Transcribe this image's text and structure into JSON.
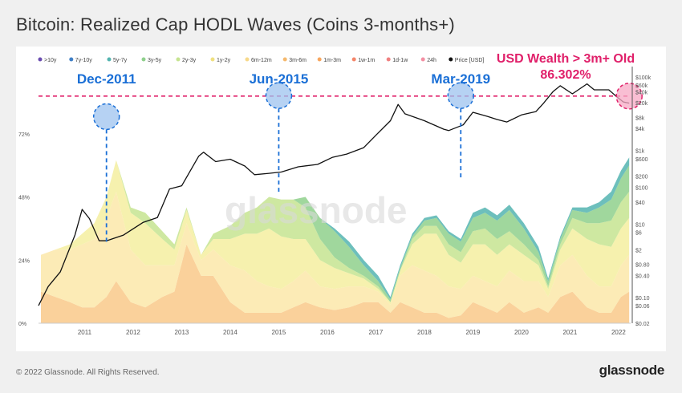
{
  "page": {
    "title": "Bitcoin: Realized Cap HODL Waves (Coins 3-months+)",
    "copyright": "© 2022 Glassnode. All Rights Reserved.",
    "brand": "glassnode",
    "watermark": "glassnode"
  },
  "chart_data": {
    "type": "area",
    "title": "Bitcoin: Realized Cap HODL Waves (Coins 3-months+)",
    "x": [
      2010.6,
      2010.9,
      2011.2,
      2011.45,
      2011.7,
      2011.95,
      2012.15,
      2012.45,
      2012.75,
      2013.1,
      2013.35,
      2013.6,
      2013.9,
      2014.15,
      2014.5,
      2014.8,
      2015.05,
      2015.3,
      2015.55,
      2015.8,
      2016.05,
      2016.35,
      2016.65,
      2016.95,
      2017.25,
      2017.55,
      2017.8,
      2018.0,
      2018.25,
      2018.5,
      2018.75,
      2019.0,
      2019.25,
      2019.5,
      2019.75,
      2020.0,
      2020.25,
      2020.55,
      2020.85,
      2021.05,
      2021.3,
      2021.55,
      2021.85,
      2022.1,
      2022.35,
      2022.55,
      2022.72
    ],
    "series": [
      {
        "name": "7y-10y",
        "color": "#3f7fc6",
        "values": [
          0,
          0,
          0,
          0,
          0,
          0,
          0,
          0,
          0,
          0,
          0,
          0,
          0,
          0,
          0,
          0,
          0,
          0,
          0,
          0,
          0,
          0,
          0,
          0,
          0,
          0,
          0,
          0,
          0,
          0,
          0,
          0,
          0,
          0,
          0,
          0,
          0,
          0,
          0,
          0,
          0,
          0,
          0,
          0,
          0,
          0,
          0
        ]
      },
      {
        "name": "5y-7y",
        "color": "#54b4b0",
        "values": [
          0,
          0,
          0,
          0,
          0,
          0,
          0,
          0,
          0,
          0,
          0,
          0,
          0,
          0,
          0,
          0,
          0,
          0,
          0,
          0,
          0,
          0,
          1,
          2,
          2,
          2,
          1,
          1,
          1,
          1,
          1,
          1,
          1,
          2,
          2,
          2,
          2,
          2,
          2,
          1,
          1,
          1,
          2,
          2,
          3,
          3,
          3
        ]
      },
      {
        "name": "3y-5y",
        "color": "#8fd08c",
        "values": [
          0,
          0,
          0,
          0,
          0,
          0,
          0,
          0,
          0,
          0,
          0,
          0,
          0,
          0,
          0,
          0,
          0,
          0,
          0,
          0,
          4,
          8,
          10,
          8,
          4,
          2,
          1,
          1,
          1,
          2,
          3,
          4,
          4,
          5,
          6,
          7,
          8,
          6,
          3,
          2,
          2,
          3,
          4,
          6,
          8,
          9,
          10
        ]
      },
      {
        "name": "2y-3y",
        "color": "#c6e491",
        "values": [
          0,
          0,
          0,
          0,
          0,
          0,
          0,
          2,
          4,
          3,
          2,
          1,
          0,
          2,
          5,
          8,
          10,
          12,
          14,
          15,
          12,
          8,
          4,
          2,
          1,
          1,
          0,
          0,
          2,
          3,
          3,
          4,
          4,
          5,
          6,
          6,
          5,
          4,
          2,
          1,
          2,
          4,
          6,
          8,
          10,
          10,
          10
        ]
      },
      {
        "name": "1y-2y",
        "color": "#f4eea0",
        "values": [
          0,
          0,
          2,
          4,
          6,
          8,
          12,
          14,
          16,
          10,
          6,
          5,
          2,
          4,
          10,
          14,
          18,
          22,
          20,
          16,
          12,
          10,
          8,
          5,
          3,
          1,
          1,
          2,
          8,
          14,
          16,
          12,
          10,
          12,
          14,
          12,
          10,
          10,
          6,
          3,
          6,
          10,
          14,
          16,
          15,
          14,
          14
        ]
      },
      {
        "name": "6m-12m",
        "color": "#fbe7a9",
        "values": [
          14,
          18,
          20,
          24,
          26,
          30,
          34,
          20,
          16,
          12,
          10,
          8,
          6,
          10,
          14,
          16,
          12,
          10,
          9,
          10,
          12,
          8,
          8,
          8,
          6,
          4,
          3,
          10,
          16,
          16,
          14,
          12,
          10,
          10,
          10,
          10,
          12,
          12,
          10,
          6,
          12,
          14,
          12,
          10,
          10,
          12,
          14
        ]
      },
      {
        "name": "3m-6m",
        "color": "#f9c98a",
        "values": [
          12,
          10,
          8,
          6,
          6,
          10,
          16,
          8,
          6,
          10,
          12,
          30,
          18,
          18,
          8,
          4,
          4,
          4,
          4,
          6,
          8,
          6,
          5,
          6,
          8,
          8,
          4,
          8,
          6,
          4,
          4,
          2,
          3,
          8,
          6,
          4,
          8,
          4,
          6,
          4,
          10,
          12,
          6,
          4,
          4,
          10,
          12
        ]
      }
    ],
    "price": {
      "name": "Price [USD]",
      "color": "#111111",
      "x": [
        2010.55,
        2010.75,
        2011.0,
        2011.3,
        2011.45,
        2011.6,
        2011.8,
        2011.95,
        2012.3,
        2012.7,
        2013.0,
        2013.25,
        2013.5,
        2013.85,
        2013.95,
        2014.2,
        2014.5,
        2014.8,
        2015.0,
        2015.3,
        2015.55,
        2015.9,
        2016.3,
        2016.6,
        2016.9,
        2017.25,
        2017.5,
        2017.8,
        2017.96,
        2018.1,
        2018.5,
        2018.9,
        2019.0,
        2019.3,
        2019.5,
        2019.8,
        2020.0,
        2020.2,
        2020.5,
        2020.8,
        2020.95,
        2021.15,
        2021.3,
        2021.55,
        2021.85,
        2022.0,
        2022.3,
        2022.45,
        2022.6,
        2022.72
      ],
      "values": [
        0.06,
        0.2,
        0.5,
        5,
        25,
        14,
        3.5,
        3.5,
        5,
        11,
        15,
        90,
        110,
        700,
        900,
        500,
        580,
        380,
        220,
        240,
        260,
        360,
        420,
        650,
        800,
        1200,
        2600,
        6500,
        18000,
        10000,
        6500,
        3800,
        3500,
        5000,
        11000,
        8500,
        7000,
        6000,
        9300,
        11500,
        19000,
        40000,
        58000,
        35000,
        65000,
        45000,
        45000,
        30000,
        21000,
        19500
      ]
    },
    "annotations": [
      {
        "label": "Dec-2011",
        "x": 2011.95,
        "y": 78.5
      },
      {
        "label": "Jun-2015",
        "x": 2015.5,
        "y": 86.5
      },
      {
        "label": "Mar-2019",
        "x": 2019.25,
        "y": 86.5
      },
      {
        "label": "USD Wealth > 3m+ Old",
        "value_label": "86.302%",
        "x": 2022.72,
        "y": 86.3
      }
    ],
    "legend": [
      {
        "label": ">10y",
        "color": "#6a4cb0"
      },
      {
        "label": "7y-10y",
        "color": "#3f7fc6"
      },
      {
        "label": "5y-7y",
        "color": "#54b4b0"
      },
      {
        "label": "3y-5y",
        "color": "#8fd08c"
      },
      {
        "label": "2y-3y",
        "color": "#c6e491"
      },
      {
        "label": "1y-2y",
        "color": "#f0e080"
      },
      {
        "label": "6m-12m",
        "color": "#f7d98a"
      },
      {
        "label": "3m-6m",
        "color": "#f5b96e"
      },
      {
        "label": "1m-3m",
        "color": "#f7a65e"
      },
      {
        "label": "1w-1m",
        "color": "#f4866a"
      },
      {
        "label": "1d-1w",
        "color": "#f08080"
      },
      {
        "label": "24h",
        "color": "#f38fa3"
      },
      {
        "label": "Price [USD]",
        "color": "#111111"
      }
    ],
    "xticks": [
      2011,
      2012,
      2013,
      2014,
      2015,
      2016,
      2017,
      2018,
      2019,
      2020,
      2021,
      2022
    ],
    "xlim": [
      2010.55,
      2022.75
    ],
    "yticks_left": [
      {
        "v": 0,
        "label": "0%"
      },
      {
        "v": 24,
        "label": "24%"
      },
      {
        "v": 48,
        "label": "48%"
      },
      {
        "v": 72,
        "label": "72%"
      }
    ],
    "ylim_left": [
      0,
      96
    ],
    "yticks_right": [
      {
        "v": 100000,
        "label": "$100k"
      },
      {
        "v": 60000,
        "label": "$60k"
      },
      {
        "v": 40000,
        "label": "$40k"
      },
      {
        "v": 20000,
        "label": "$20k"
      },
      {
        "v": 8000,
        "label": "$8k"
      },
      {
        "v": 4000,
        "label": "$4k"
      },
      {
        "v": 1000,
        "label": "$1k"
      },
      {
        "v": 600,
        "label": "$600"
      },
      {
        "v": 200,
        "label": "$200"
      },
      {
        "v": 100,
        "label": "$100"
      },
      {
        "v": 40,
        "label": "$40"
      },
      {
        "v": 10,
        "label": "$10"
      },
      {
        "v": 6,
        "label": "$6"
      },
      {
        "v": 2,
        "label": "$2"
      },
      {
        "v": 0.8,
        "label": "$0.80"
      },
      {
        "v": 0.4,
        "label": "$0.40"
      },
      {
        "v": 0.1,
        "label": "$0.10"
      },
      {
        "v": 0.06,
        "label": "$0.06"
      },
      {
        "v": 0.02,
        "label": "$0.02"
      }
    ],
    "ylim_right": [
      0.02,
      150000
    ],
    "yscale_right": "log",
    "threshold_y": 86.3,
    "grid": false,
    "legend_position": "top-left"
  },
  "colors": {
    "accent_blue": "#1a6fd6",
    "accent_pink": "#e0206a"
  }
}
